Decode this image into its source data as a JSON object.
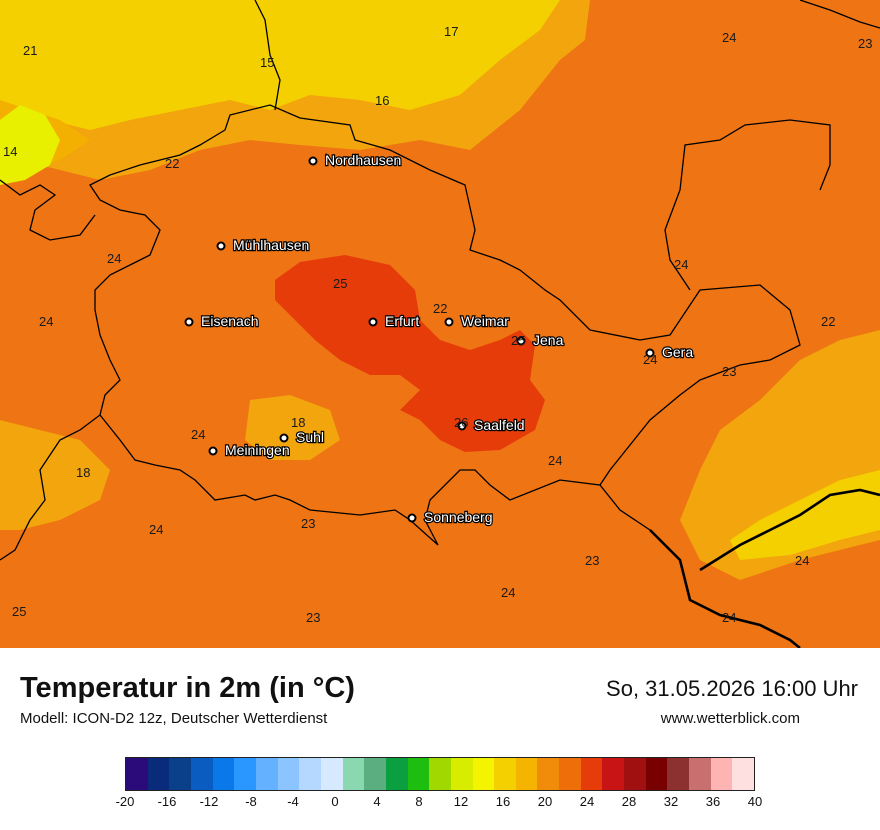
{
  "map": {
    "cities": [
      {
        "name": "Nordhausen"
      },
      {
        "name": "Mühlhausen"
      },
      {
        "name": "Eisenach"
      },
      {
        "name": "Erfurt"
      },
      {
        "name": "Weimar"
      },
      {
        "name": "Jena"
      },
      {
        "name": "Gera"
      },
      {
        "name": "Saalfeld"
      },
      {
        "name": "Suhl"
      },
      {
        "name": "Meiningen"
      },
      {
        "name": "Sonneberg"
      }
    ],
    "temperature_labels": [
      "21",
      "17",
      "24",
      "23",
      "15",
      "16",
      "14",
      "22",
      "24",
      "24",
      "24",
      "25",
      "22",
      "22",
      "25",
      "24",
      "23",
      "18",
      "24",
      "26",
      "24",
      "18",
      "24",
      "23",
      "23",
      "24",
      "24",
      "25",
      "23",
      "24"
    ]
  },
  "footer": {
    "title": "Temperatur in 2m (in °C)",
    "subtitle": "Modell: ICON-D2 12z, Deutscher Wetterdienst",
    "datetime": "So, 31.05.2026 16:00 Uhr",
    "website": "www.wetterblick.com"
  },
  "legend": {
    "ticks": [
      "-20",
      "-16",
      "-12",
      "-8",
      "-4",
      "0",
      "4",
      "8",
      "12",
      "16",
      "20",
      "24",
      "28",
      "32",
      "36",
      "40"
    ],
    "colors": [
      "#2b0a7a",
      "#0a2a7a",
      "#0a3f8a",
      "#0a5cc0",
      "#0a78e8",
      "#2a96ff",
      "#64b2ff",
      "#8cc4ff",
      "#b4d8ff",
      "#d6e9ff",
      "#8ad8b0",
      "#5aae80",
      "#0aa040",
      "#1ebe10",
      "#a0d800",
      "#d8ec00",
      "#f4f400",
      "#f4d000",
      "#f4b400",
      "#f08c0a",
      "#ee6e0a",
      "#e63c0a",
      "#c81414",
      "#a01010",
      "#780000",
      "#8c3030",
      "#c87070",
      "#ffb4b4",
      "#ffe0e0"
    ]
  }
}
